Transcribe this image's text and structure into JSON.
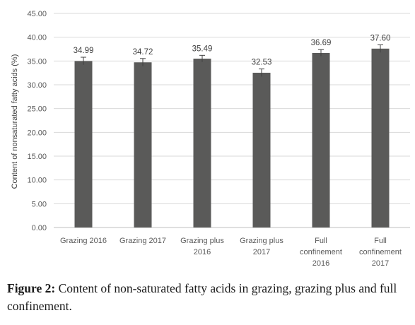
{
  "chart_data": {
    "type": "bar",
    "categories": [
      [
        "Grazing 2016"
      ],
      [
        "Grazing 2017"
      ],
      [
        "Grazing plus",
        "2016"
      ],
      [
        "Grazing plus",
        "2017"
      ],
      [
        "Full",
        "confinement",
        "2016"
      ],
      [
        "Full",
        "confinement",
        "2017"
      ]
    ],
    "values": [
      34.99,
      34.72,
      35.49,
      32.53,
      36.69,
      37.6
    ],
    "data_labels": [
      "34.99",
      "34.72",
      "35.49",
      "32.53",
      "36.69",
      "37.60"
    ],
    "error": [
      0.8,
      0.8,
      0.7,
      0.8,
      0.7,
      0.8
    ],
    "ylabel": "Content of nonsaturated fatty acids (%)",
    "ylim": [
      0,
      45
    ],
    "yticks": [
      "0.00",
      "5.00",
      "10.00",
      "15.00",
      "20.00",
      "25.00",
      "30.00",
      "35.00",
      "40.00",
      "45.00"
    ],
    "grid": true,
    "bar_color": "#5a5a59",
    "grid_color": "#d9d9d9"
  },
  "caption": {
    "label": "Figure 2:",
    "text": " Content of non-saturated fatty acids in grazing, grazing plus and full confinement."
  }
}
